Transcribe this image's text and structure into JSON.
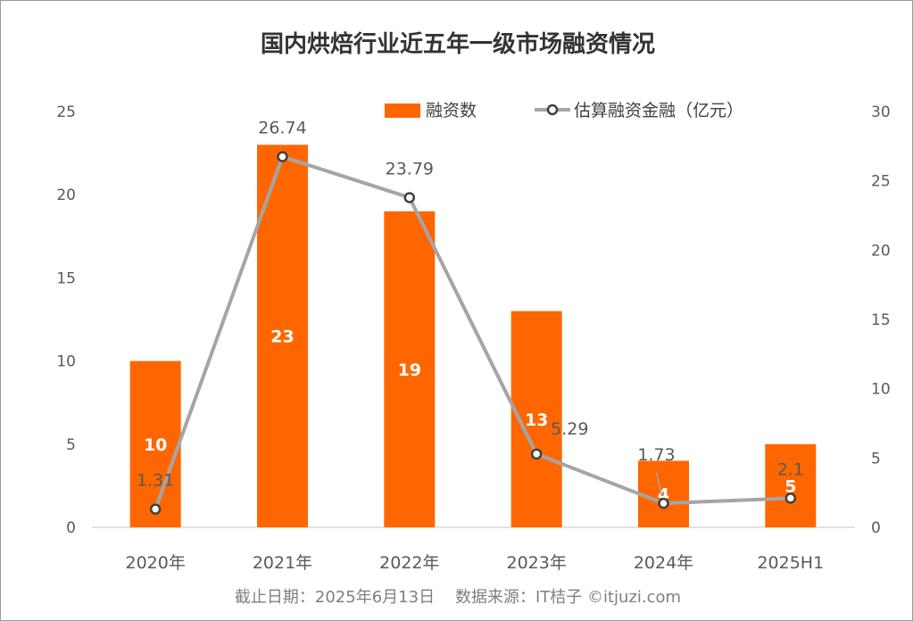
{
  "colors": {
    "bar": "#ff6600",
    "line": "#a5a5a5",
    "marker_fill": "#ffffff",
    "marker_stroke": "#404040",
    "axis": "#d9d9d9"
  },
  "footer": {
    "text": "截止日期：2025年6月13日    数据来源：IT桔子 ©itjuzi.com"
  },
  "chart_data": {
    "type": "bar",
    "title": "国内烘焙行业近五年一级市场融资情况",
    "categories": [
      "2020年",
      "2021年",
      "2022年",
      "2023年",
      "2024年",
      "2025H1"
    ],
    "series": [
      {
        "name": "融资数",
        "type": "bar",
        "axis": "left",
        "values": [
          10,
          23,
          19,
          13,
          4,
          5
        ],
        "labels": [
          "10",
          "23",
          "19",
          "13",
          "4",
          "5"
        ]
      },
      {
        "name": "估算融资金融（亿元）",
        "type": "line",
        "axis": "right",
        "values": [
          1.31,
          26.74,
          23.79,
          5.29,
          1.73,
          2.1
        ],
        "labels": [
          "1.31",
          "26.74",
          "23.79",
          "5.29",
          "1.73",
          "2.1"
        ]
      }
    ],
    "y_left": {
      "ylim": [
        0,
        25
      ],
      "ticks": [
        "0",
        "5",
        "10",
        "15",
        "20",
        "25"
      ]
    },
    "y_right": {
      "ylim": [
        0,
        30
      ],
      "ticks": [
        "0",
        "5",
        "10",
        "15",
        "20",
        "25",
        "30"
      ]
    },
    "grid": false,
    "legend": "top-right"
  }
}
